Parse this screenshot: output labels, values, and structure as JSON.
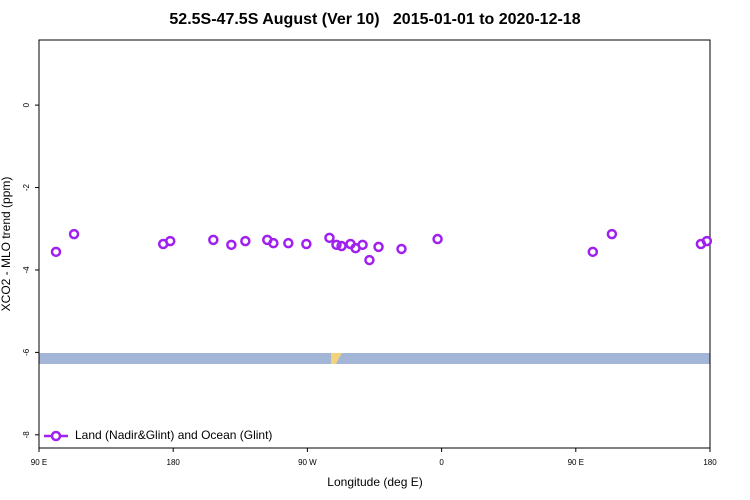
{
  "chart_data": {
    "type": "scatter",
    "title": "52.5S-47.5S August (Ver 10)   2015-01-01 to 2020-12-18",
    "x_label": "Longitude (deg E)",
    "y_label": "XCO2 - MLO trend (ppm)",
    "x": [
      101.4,
      113.5,
      173.3,
      178.0,
      206.9,
      219.0,
      228.4,
      243.1,
      247.2,
      257.2,
      269.3,
      284.8,
      289.5,
      292.9,
      298.9,
      302.3,
      307.0,
      311.6,
      317.7,
      333.1,
      357.3,
      461.4,
      474.2,
      533.9,
      537.9
    ],
    "series": [
      {
        "name": "Land (Nadir&Glint) and Ocean (Glint)",
        "color": "#a020f0",
        "values": [
          -3.56,
          -3.13,
          -3.37,
          -3.3,
          -3.27,
          -3.39,
          -3.3,
          -3.27,
          -3.35,
          -3.35,
          -3.37,
          -3.22,
          -3.39,
          -3.42,
          -3.37,
          -3.47,
          -3.39,
          -3.76,
          -3.44,
          -3.49,
          -3.25,
          -3.56,
          -3.13,
          -3.37,
          -3.3
        ]
      }
    ],
    "xlim": [
      90,
      540
    ],
    "xticks": [
      {
        "value": 90,
        "label": "90 E"
      },
      180,
      {
        "value": 270,
        "label": "90 W"
      },
      {
        "value": 360,
        "label": "0"
      },
      {
        "value": 450,
        "label": "90 E"
      },
      {
        "value": 540,
        "label": "180"
      }
    ],
    "ylim": [
      -8.32,
      1.58
    ],
    "yticks": [
      0,
      -2,
      -4,
      -6,
      -8
    ],
    "legend": "bottom-left"
  }
}
